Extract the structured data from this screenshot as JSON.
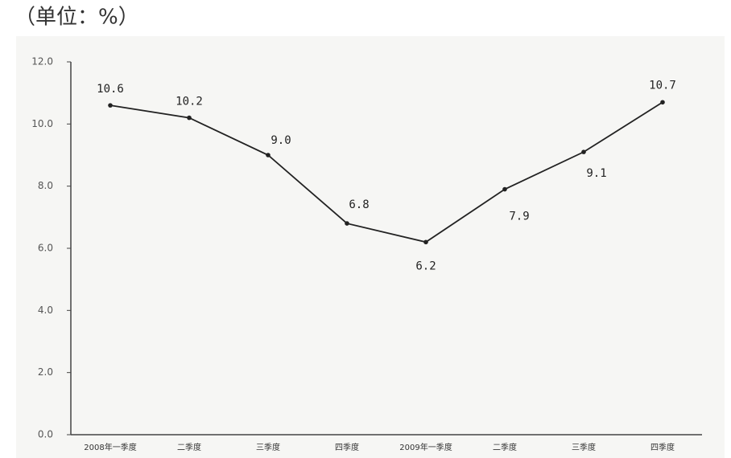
{
  "chart_data": {
    "type": "line",
    "title": "（单位：%）",
    "categories": [
      "2008年一季度",
      "二季度",
      "三季度",
      "四季度",
      "2009年一季度",
      "二季度",
      "三季度",
      "四季度"
    ],
    "values": [
      10.6,
      10.2,
      9.0,
      6.8,
      6.2,
      7.9,
      9.1,
      10.7
    ],
    "value_labels": [
      "10.6",
      "10.2",
      "9.0",
      "6.8",
      "6.2",
      "7.9",
      "9.1",
      "10.7"
    ],
    "color": "#222222",
    "ylim": [
      0,
      12
    ],
    "yticks": [
      {
        "value": 0,
        "label": "0.0"
      },
      {
        "value": 2,
        "label": "2.0"
      },
      {
        "value": 4,
        "label": "4.0"
      },
      {
        "value": 6,
        "label": "6.0"
      },
      {
        "value": 8,
        "label": "8.0"
      },
      {
        "value": 10,
        "label": "10.0"
      },
      {
        "value": 12,
        "label": "12.0"
      }
    ]
  }
}
